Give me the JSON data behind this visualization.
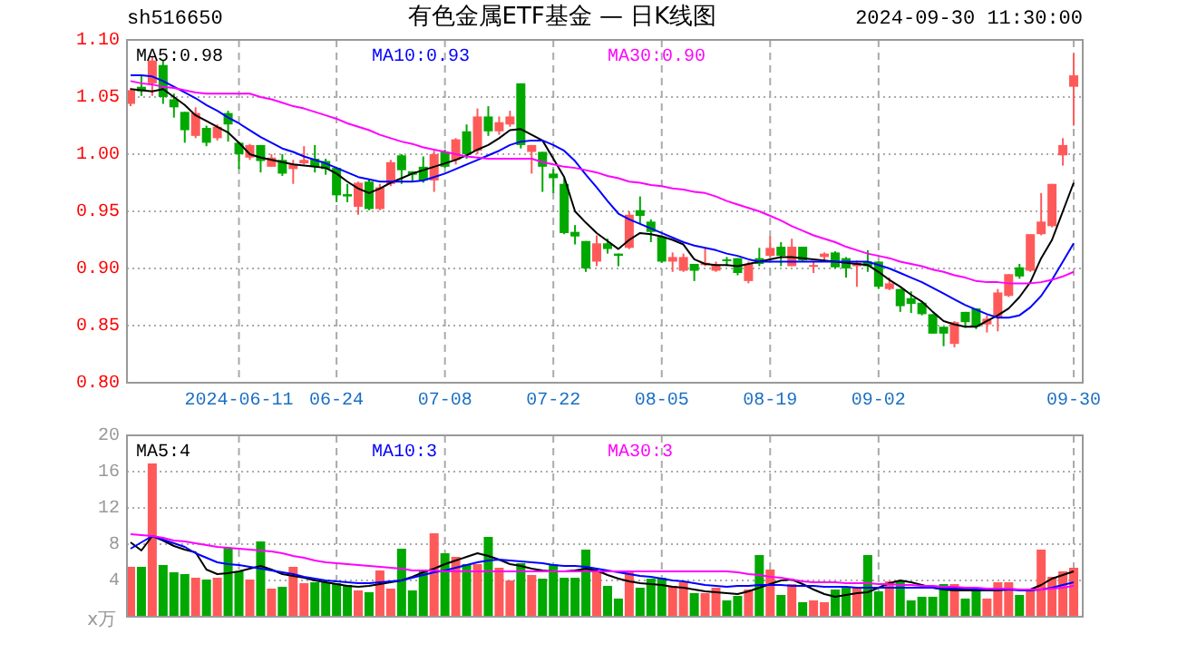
{
  "chart_data": [
    {
      "type": "candlestick",
      "title": "有色金属ETF基金 — 日K线图",
      "subtitle": "sh516650",
      "annotations": [
        "2024-09-30 11:30:00"
      ],
      "categories": [
        null,
        null,
        null,
        null,
        null,
        null,
        null,
        null,
        null,
        null,
        "2024-06-11",
        null,
        null,
        null,
        null,
        null,
        null,
        null,
        null,
        "06-24",
        null,
        null,
        null,
        null,
        null,
        null,
        null,
        null,
        null,
        "07-08",
        null,
        null,
        null,
        null,
        null,
        null,
        null,
        null,
        null,
        "07-22",
        null,
        null,
        null,
        null,
        null,
        null,
        null,
        null,
        null,
        "08-05",
        null,
        null,
        null,
        null,
        null,
        null,
        null,
        null,
        null,
        "08-19",
        null,
        null,
        null,
        null,
        null,
        null,
        null,
        null,
        null,
        "09-02",
        null,
        null,
        null,
        null,
        null,
        null,
        null,
        null,
        null,
        null,
        null,
        null,
        null,
        null,
        null,
        null,
        null,
        "09-30"
      ],
      "ohlc": [
        [
          1.044,
          1.058,
          1.042,
          1.056
        ],
        [
          1.059,
          1.069,
          1.051,
          1.055
        ],
        [
          1.062,
          1.085,
          1.051,
          1.082
        ],
        [
          1.078,
          1.082,
          1.044,
          1.05
        ],
        [
          1.048,
          1.053,
          1.032,
          1.041
        ],
        [
          1.037,
          1.037,
          1.01,
          1.021
        ],
        [
          1.016,
          1.041,
          1.014,
          1.036
        ],
        [
          1.023,
          1.025,
          1.007,
          1.01
        ],
        [
          1.014,
          1.026,
          1.012,
          1.024
        ],
        [
          1.036,
          1.038,
          1.011,
          1.026
        ],
        [
          1.01,
          1.01,
          0.987,
          1.0
        ],
        [
          0.997,
          1.009,
          0.995,
          1.008
        ],
        [
          1.008,
          1.008,
          0.984,
          0.994
        ],
        [
          0.989,
          1.0,
          0.989,
          0.997
        ],
        [
          0.995,
          1.0,
          0.981,
          0.983
        ],
        [
          0.987,
          0.995,
          0.974,
          0.991
        ],
        [
          0.992,
          1.007,
          0.991,
          0.995
        ],
        [
          0.996,
          1.008,
          0.984,
          0.989
        ],
        [
          0.994,
          0.996,
          0.982,
          0.987
        ],
        [
          0.988,
          0.989,
          0.958,
          0.964
        ],
        [
          0.965,
          0.974,
          0.958,
          0.963
        ],
        [
          0.954,
          0.976,
          0.947,
          0.975
        ],
        [
          0.976,
          0.978,
          0.951,
          0.952
        ],
        [
          0.952,
          0.974,
          0.951,
          0.971
        ],
        [
          0.974,
          0.995,
          0.972,
          0.993
        ],
        [
          0.999,
          1.0,
          0.974,
          0.986
        ],
        [
          0.985,
          0.985,
          0.976,
          0.982
        ],
        [
          0.989,
          0.998,
          0.975,
          0.977
        ],
        [
          0.977,
          1.003,
          0.967,
          1.0
        ],
        [
          1.002,
          1.004,
          0.988,
          0.989
        ],
        [
          0.995,
          1.014,
          0.991,
          1.013
        ],
        [
          1.02,
          1.026,
          0.996,
          1.0
        ],
        [
          1.003,
          1.04,
          1.0,
          1.033
        ],
        [
          1.033,
          1.042,
          1.016,
          1.02
        ],
        [
          1.02,
          1.033,
          1.017,
          1.028
        ],
        [
          1.026,
          1.038,
          1.024,
          1.033
        ],
        [
          1.062,
          1.062,
          1.005,
          1.008
        ],
        [
          1.002,
          1.008,
          0.983,
          1.008
        ],
        [
          1.002,
          1.002,
          0.967,
          0.989
        ],
        [
          0.983,
          0.987,
          0.966,
          0.979
        ],
        [
          0.974,
          0.979,
          0.93,
          0.931
        ],
        [
          0.932,
          0.938,
          0.921,
          0.928
        ],
        [
          0.924,
          0.924,
          0.897,
          0.9
        ],
        [
          0.906,
          0.929,
          0.902,
          0.922
        ],
        [
          0.922,
          0.926,
          0.913,
          0.917
        ],
        [
          0.913,
          0.913,
          0.902,
          0.911
        ],
        [
          0.918,
          0.95,
          0.917,
          0.947
        ],
        [
          0.951,
          0.963,
          0.939,
          0.946
        ],
        [
          0.941,
          0.943,
          0.923,
          0.932
        ],
        [
          0.928,
          0.928,
          0.905,
          0.906
        ],
        [
          0.906,
          0.914,
          0.897,
          0.91
        ],
        [
          0.898,
          0.913,
          0.897,
          0.91
        ],
        [
          0.904,
          0.904,
          0.889,
          0.898
        ],
        [
          0.903,
          0.918,
          0.902,
          0.905
        ],
        [
          0.898,
          0.906,
          0.897,
          0.903
        ],
        [
          0.908,
          0.91,
          0.902,
          0.907
        ],
        [
          0.909,
          0.909,
          0.894,
          0.896
        ],
        [
          0.889,
          0.906,
          0.887,
          0.904
        ],
        [
          0.909,
          0.918,
          0.902,
          0.904
        ],
        [
          0.911,
          0.928,
          0.91,
          0.918
        ],
        [
          0.919,
          0.923,
          0.902,
          0.911
        ],
        [
          0.902,
          0.926,
          0.902,
          0.919
        ],
        [
          0.919,
          0.919,
          0.906,
          0.907
        ],
        [
          0.902,
          0.906,
          0.896,
          0.903
        ],
        [
          0.91,
          0.914,
          0.907,
          0.913
        ],
        [
          0.914,
          0.915,
          0.9,
          0.901
        ],
        [
          0.909,
          0.91,
          0.892,
          0.9
        ],
        [
          0.902,
          0.907,
          0.884,
          0.905
        ],
        [
          0.906,
          0.916,
          0.897,
          0.902
        ],
        [
          0.906,
          0.906,
          0.882,
          0.884
        ],
        [
          0.882,
          0.892,
          0.881,
          0.887
        ],
        [
          0.882,
          0.882,
          0.862,
          0.867
        ],
        [
          0.874,
          0.88,
          0.861,
          0.869
        ],
        [
          0.87,
          0.871,
          0.859,
          0.86
        ],
        [
          0.86,
          0.86,
          0.843,
          0.843
        ],
        [
          0.849,
          0.849,
          0.832,
          0.843
        ],
        [
          0.834,
          0.854,
          0.831,
          0.853
        ],
        [
          0.862,
          0.862,
          0.848,
          0.853
        ],
        [
          0.865,
          0.865,
          0.847,
          0.849
        ],
        [
          0.851,
          0.859,
          0.844,
          0.856
        ],
        [
          0.857,
          0.882,
          0.845,
          0.879
        ],
        [
          0.876,
          0.895,
          0.875,
          0.895
        ],
        [
          0.901,
          0.904,
          0.891,
          0.893
        ],
        [
          0.898,
          0.93,
          0.897,
          0.93
        ],
        [
          0.93,
          0.966,
          0.929,
          0.941
        ],
        [
          0.937,
          0.974,
          0.936,
          0.974
        ],
        [
          0.999,
          1.014,
          0.99,
          1.008
        ],
        [
          1.059,
          1.088,
          1.025,
          1.069
        ]
      ],
      "series": [
        {
          "type": "line",
          "name": "MA5:0.98",
          "color": "#000000",
          "values": [
            1.057,
            1.056,
            1.055,
            1.057,
            1.05,
            1.043,
            1.034,
            1.029,
            1.024,
            1.019,
            1.01,
            1.0,
            0.997,
            0.995,
            0.993,
            0.991,
            0.99,
            0.989,
            0.988,
            0.983,
            0.976,
            0.97,
            0.966,
            0.97,
            0.975,
            0.979,
            0.983,
            0.986,
            0.989,
            0.992,
            0.995,
            0.999,
            1.004,
            1.008,
            1.014,
            1.021,
            1.022,
            1.017,
            1.012,
            0.996,
            0.98,
            0.95,
            0.94,
            0.931,
            0.924,
            0.917,
            0.925,
            0.931,
            0.93,
            0.928,
            0.925,
            0.921,
            0.908,
            0.904,
            0.903,
            0.903,
            0.902,
            0.904,
            0.906,
            0.908,
            0.91,
            0.91,
            0.909,
            0.908,
            0.907,
            0.906,
            0.905,
            0.904,
            0.903,
            0.897,
            0.89,
            0.884,
            0.877,
            0.871,
            0.862,
            0.854,
            0.851,
            0.849,
            0.849,
            0.854,
            0.859,
            0.865,
            0.875,
            0.888,
            0.909,
            0.925,
            0.95,
            0.975
          ]
        },
        {
          "type": "line",
          "name": "MA10:0.93",
          "color": "#0000ff",
          "values": [
            1.069,
            1.069,
            1.068,
            1.064,
            1.059,
            1.054,
            1.049,
            1.043,
            1.038,
            1.032,
            1.027,
            1.021,
            1.015,
            1.01,
            1.005,
            1.002,
            0.998,
            0.995,
            0.992,
            0.988,
            0.984,
            0.98,
            0.978,
            0.976,
            0.976,
            0.976,
            0.976,
            0.977,
            0.98,
            0.983,
            0.987,
            0.991,
            0.995,
            0.999,
            1.003,
            1.008,
            1.011,
            1.012,
            1.012,
            1.008,
            1.003,
            0.994,
            0.982,
            0.971,
            0.959,
            0.948,
            0.943,
            0.939,
            0.935,
            0.931,
            0.927,
            0.923,
            0.92,
            0.918,
            0.916,
            0.913,
            0.911,
            0.908,
            0.906,
            0.906,
            0.906,
            0.906,
            0.906,
            0.906,
            0.906,
            0.906,
            0.906,
            0.906,
            0.906,
            0.903,
            0.9,
            0.896,
            0.892,
            0.888,
            0.883,
            0.878,
            0.873,
            0.868,
            0.864,
            0.86,
            0.857,
            0.857,
            0.859,
            0.866,
            0.876,
            0.89,
            0.906,
            0.922
          ]
        },
        {
          "type": "line",
          "name": "MA30:0.90",
          "color": "#ff00ff",
          "values": [
            1.064,
            1.062,
            1.061,
            1.059,
            1.058,
            1.056,
            1.054,
            1.053,
            1.053,
            1.053,
            1.053,
            1.053,
            1.05,
            1.048,
            1.045,
            1.042,
            1.04,
            1.037,
            1.034,
            1.031,
            1.027,
            1.024,
            1.021,
            1.017,
            1.014,
            1.011,
            1.009,
            1.006,
            1.004,
            1.002,
            1.0,
            0.998,
            0.997,
            0.996,
            0.996,
            0.996,
            0.996,
            0.996,
            0.993,
            0.991,
            0.989,
            0.988,
            0.986,
            0.984,
            0.981,
            0.979,
            0.976,
            0.975,
            0.973,
            0.972,
            0.97,
            0.969,
            0.967,
            0.966,
            0.963,
            0.959,
            0.956,
            0.953,
            0.95,
            0.946,
            0.942,
            0.937,
            0.933,
            0.929,
            0.926,
            0.923,
            0.919,
            0.916,
            0.913,
            0.911,
            0.909,
            0.906,
            0.904,
            0.902,
            0.899,
            0.897,
            0.894,
            0.892,
            0.889,
            0.888,
            0.888,
            0.887,
            0.887,
            0.887,
            0.888,
            0.89,
            0.893,
            0.897
          ]
        }
      ],
      "ylim": [
        0.8,
        1.1
      ],
      "yticks": [
        {
          "value": 0.8,
          "label": "0.80"
        },
        {
          "value": 0.85,
          "label": "0.85"
        },
        {
          "value": 0.9,
          "label": "0.90"
        },
        {
          "value": 0.95,
          "label": "0.95"
        },
        {
          "value": 1.0,
          "label": "1.00"
        },
        {
          "value": 1.05,
          "label": "1.05"
        },
        {
          "value": 1.1,
          "label": "1.10"
        }
      ],
      "grid": true,
      "legend": "top"
    },
    {
      "type": "bar",
      "ylabel": "x万",
      "tick_labels": "y",
      "categories": [
        null,
        null,
        null,
        null,
        null,
        null,
        null,
        null,
        null,
        null,
        null,
        null,
        null,
        null,
        null,
        null,
        null,
        null,
        null,
        null,
        null,
        null,
        null,
        null,
        null,
        null,
        null,
        null,
        null,
        null,
        null,
        null,
        null,
        null,
        null,
        null,
        null,
        null,
        null,
        null,
        null,
        null,
        null,
        null,
        null,
        null,
        null,
        null,
        null,
        null,
        null,
        null,
        null,
        null,
        null,
        null,
        null,
        null,
        null,
        null,
        null,
        null,
        null,
        null,
        null,
        null,
        null,
        null,
        null,
        null,
        null,
        null,
        null,
        null,
        null,
        null,
        null,
        null,
        null,
        null,
        null,
        null,
        null,
        null,
        null,
        null,
        null,
        null
      ],
      "values": [
        5.5,
        5.5,
        16.9,
        5.7,
        4.9,
        4.7,
        4.3,
        4.1,
        4.3,
        7.6,
        5.0,
        4.1,
        8.3,
        3.1,
        3.3,
        5.5,
        3.7,
        3.8,
        3.8,
        3.7,
        3.5,
        2.9,
        2.7,
        5.1,
        3.1,
        7.5,
        2.9,
        5.1,
        9.2,
        7.0,
        6.6,
        5.8,
        5.8,
        8.8,
        5.4,
        4.0,
        5.9,
        4.6,
        4.2,
        5.8,
        4.3,
        4.3,
        7.4,
        5.0,
        3.4,
        2.0,
        5.0,
        3.2,
        4.2,
        4.3,
        3.4,
        3.8,
        2.6,
        2.6,
        3.2,
        1.8,
        2.3,
        3.0,
        6.8,
        5.2,
        2.4,
        3.6,
        1.6,
        1.8,
        1.6,
        3.0,
        3.2,
        3.2,
        6.8,
        2.8,
        3.9,
        4.0,
        1.8,
        2.2,
        2.2,
        3.6,
        3.6,
        2.0,
        3.0,
        2.0,
        3.8,
        3.8,
        2.4,
        3.0,
        7.4,
        4.4,
        5.0,
        5.4
      ],
      "colors": [
        "#ff5a5a",
        "#00a800",
        "#ff5a5a",
        "#00a800",
        "#00a800",
        "#00a800",
        "#ff5a5a",
        "#00a800",
        "#ff5a5a",
        "#00a800",
        "#00a800",
        "#ff5a5a",
        "#00a800",
        "#ff5a5a",
        "#00a800",
        "#ff5a5a",
        "#ff5a5a",
        "#00a800",
        "#00a800",
        "#00a800",
        "#00a800",
        "#ff5a5a",
        "#00a800",
        "#ff5a5a",
        "#ff5a5a",
        "#00a800",
        "#00a800",
        "#00a800",
        "#ff5a5a",
        "#00a800",
        "#ff5a5a",
        "#00a800",
        "#ff5a5a",
        "#00a800",
        "#ff5a5a",
        "#ff5a5a",
        "#00a800",
        "#ff5a5a",
        "#00a800",
        "#00a800",
        "#00a800",
        "#00a800",
        "#00a800",
        "#ff5a5a",
        "#00a800",
        "#00a800",
        "#ff5a5a",
        "#00a800",
        "#00a800",
        "#00a800",
        "#ff5a5a",
        "#ff5a5a",
        "#00a800",
        "#ff5a5a",
        "#ff5a5a",
        "#00a800",
        "#00a800",
        "#ff5a5a",
        "#00a800",
        "#ff5a5a",
        "#00a800",
        "#ff5a5a",
        "#00a800",
        "#ff5a5a",
        "#ff5a5a",
        "#00a800",
        "#00a800",
        "#ff5a5a",
        "#00a800",
        "#00a800",
        "#ff5a5a",
        "#00a800",
        "#00a800",
        "#00a800",
        "#00a800",
        "#00a800",
        "#ff5a5a",
        "#00a800",
        "#00a800",
        "#ff5a5a",
        "#ff5a5a",
        "#ff5a5a",
        "#00a800",
        "#ff5a5a",
        "#ff5a5a",
        "#ff5a5a",
        "#ff5a5a",
        "#ff5a5a"
      ],
      "series": [
        {
          "type": "line",
          "name": "MA5:4",
          "color": "#000000",
          "values": [
            8.2,
            7.3,
            8.9,
            8.4,
            7.8,
            7.4,
            7.1,
            5.2,
            4.7,
            4.8,
            5.0,
            5.3,
            5.6,
            5.2,
            4.7,
            4.5,
            4.3,
            4.0,
            3.8,
            3.6,
            3.4,
            3.3,
            3.4,
            3.6,
            3.8,
            4.0,
            4.4,
            4.9,
            5.3,
            5.8,
            6.2,
            6.6,
            7.0,
            6.7,
            6.3,
            5.8,
            5.6,
            5.3,
            5.1,
            5.0,
            5.0,
            5.1,
            5.3,
            5.1,
            4.6,
            4.2,
            3.9,
            3.7,
            3.6,
            3.5,
            3.3,
            3.2,
            3.0,
            2.8,
            2.7,
            2.6,
            2.5,
            2.8,
            3.2,
            3.6,
            4.0,
            4.1,
            3.6,
            3.0,
            2.5,
            2.2,
            2.4,
            2.6,
            2.7,
            3.2,
            3.7,
            4.0,
            3.8,
            3.5,
            3.2,
            3.0,
            2.9,
            2.9,
            2.9,
            2.9,
            2.9,
            3.0,
            3.0,
            3.0,
            3.5,
            4.2,
            4.6,
            5.0
          ]
        },
        {
          "type": "line",
          "name": "MA10:3",
          "color": "#0000ff",
          "values": [
            7.5,
            8.2,
            8.9,
            8.5,
            8.1,
            7.7,
            7.0,
            6.5,
            6.0,
            5.8,
            5.7,
            5.5,
            5.3,
            5.1,
            4.9,
            4.7,
            4.4,
            4.2,
            4.0,
            3.9,
            3.8,
            3.7,
            3.7,
            3.8,
            3.9,
            4.0,
            4.3,
            4.6,
            4.9,
            5.1,
            5.4,
            5.7,
            6.0,
            6.2,
            6.3,
            6.2,
            6.1,
            6.0,
            5.9,
            5.7,
            5.6,
            5.6,
            5.5,
            5.3,
            5.1,
            4.9,
            4.7,
            4.5,
            4.4,
            4.2,
            4.0,
            3.9,
            3.7,
            3.5,
            3.4,
            3.3,
            3.4,
            3.4,
            3.5,
            3.5,
            3.5,
            3.4,
            3.4,
            3.4,
            3.3,
            3.3,
            3.3,
            3.2,
            3.2,
            3.2,
            3.2,
            3.2,
            3.2,
            3.2,
            3.2,
            3.1,
            3.1,
            3.1,
            3.0,
            3.0,
            3.0,
            3.0,
            2.9,
            2.9,
            3.0,
            3.2,
            3.5,
            3.8
          ]
        },
        {
          "type": "line",
          "name": "MA30:3",
          "color": "#ff00ff",
          "values": [
            9.1,
            9.0,
            8.9,
            8.7,
            8.4,
            8.3,
            8.1,
            7.9,
            7.7,
            7.6,
            7.5,
            7.4,
            7.3,
            7.2,
            7.0,
            6.7,
            6.5,
            6.2,
            6.0,
            5.9,
            5.8,
            5.7,
            5.6,
            5.5,
            5.4,
            5.3,
            5.1,
            5.1,
            5.1,
            5.0,
            5.0,
            5.0,
            5.0,
            5.0,
            5.0,
            5.0,
            5.0,
            5.0,
            5.0,
            5.0,
            5.0,
            5.0,
            5.0,
            5.0,
            5.0,
            5.0,
            5.0,
            5.0,
            5.0,
            5.0,
            5.0,
            5.0,
            5.0,
            5.0,
            5.0,
            5.0,
            4.9,
            4.7,
            4.6,
            4.4,
            4.3,
            4.1,
            3.9,
            3.8,
            3.8,
            3.8,
            3.7,
            3.7,
            3.7,
            3.6,
            3.6,
            3.5,
            3.5,
            3.4,
            3.4,
            3.3,
            3.3,
            3.2,
            3.2,
            3.1,
            3.1,
            3.1,
            3.0,
            3.0,
            3.0,
            3.1,
            3.2,
            3.4
          ]
        }
      ],
      "ylim": [
        0,
        20
      ],
      "yticks": [
        4,
        8,
        12,
        16,
        20
      ],
      "grid": true,
      "legend": "top"
    }
  ]
}
